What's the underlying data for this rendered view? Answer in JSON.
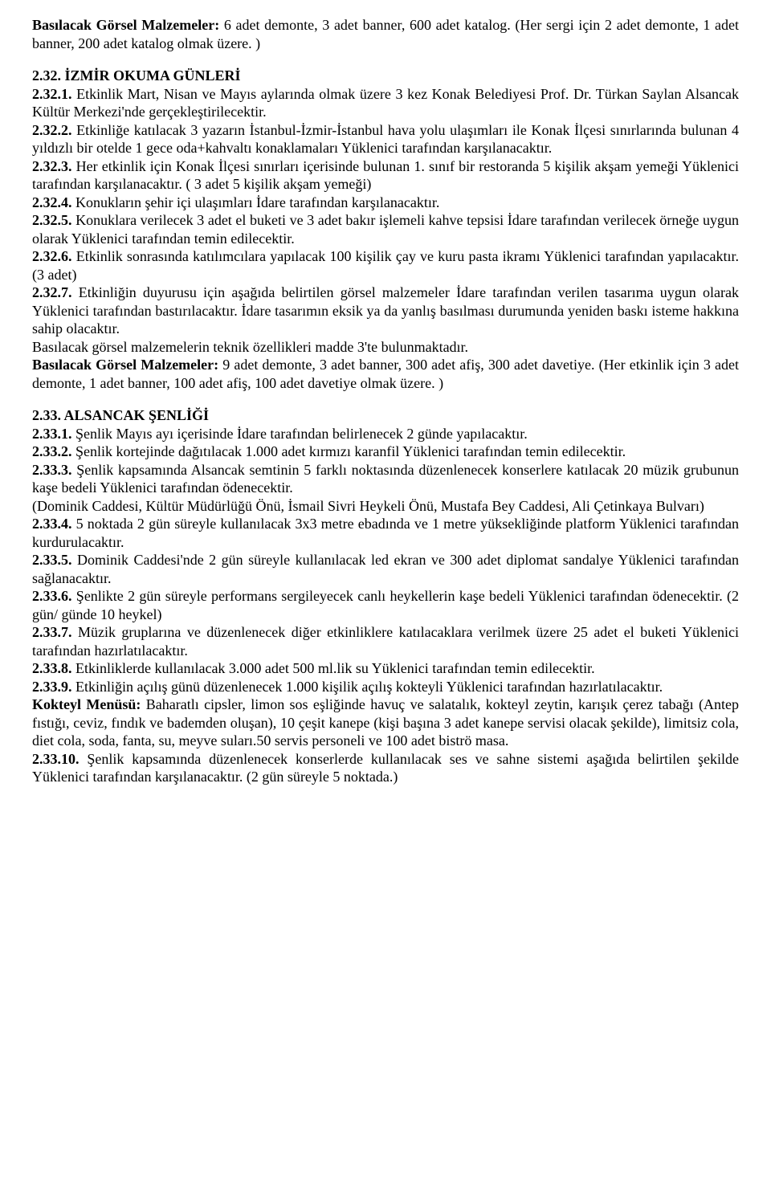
{
  "font": {
    "family": "Times New Roman",
    "size_pt": 12,
    "color": "#000000"
  },
  "background_color": "#ffffff",
  "p1a_bold": "Basılacak Görsel Malzemeler:",
  "p1a": " 6 adet demonte, 3 adet banner, 600 adet katalog. (Her sergi için 2 adet demonte, 1 adet banner, 200 adet katalog olmak üzere. )",
  "s232_title": "2.32. İZMİR OKUMA GÜNLERİ",
  "s232_1b": "2.32.1.",
  "s232_1": " Etkinlik Mart, Nisan ve Mayıs aylarında olmak üzere 3 kez Konak Belediyesi Prof. Dr. Türkan Saylan Alsancak  Kültür Merkezi'nde gerçekleştirilecektir.",
  "s232_2b": "2.32.2.",
  "s232_2": " Etkinliğe katılacak 3 yazarın İstanbul-İzmir-İstanbul hava yolu ulaşımları ile Konak İlçesi sınırlarında bulunan 4 yıldızlı bir otelde 1 gece oda+kahvaltı konaklamaları Yüklenici tarafından karşılanacaktır.",
  "s232_3b": "2.32.3.",
  "s232_3": " Her etkinlik için Konak İlçesi sınırları içerisinde bulunan 1. sınıf bir restoranda 5 kişilik akşam yemeği Yüklenici tarafından karşılanacaktır. ( 3 adet 5 kişilik akşam yemeği)",
  "s232_4b": "2.32.4.",
  "s232_4": " Konukların şehir içi ulaşımları İdare tarafından karşılanacaktır.",
  "s232_5b": "2.32.5.",
  "s232_5": " Konuklara verilecek 3 adet el buketi ve 3 adet bakır işlemeli  kahve tepsisi İdare tarafından verilecek örneğe uygun olarak Yüklenici tarafından temin edilecektir.",
  "s232_6b": "2.32.6.",
  "s232_6": " Etkinlik sonrasında katılımcılara yapılacak 100 kişilik çay ve kuru pasta ikramı Yüklenici tarafından yapılacaktır. (3 adet)",
  "s232_7b": "2.32.7.",
  "s232_7": " Etkinliğin duyurusu için aşağıda belirtilen görsel malzemeler İdare tarafından verilen tasarıma uygun olarak Yüklenici tarafından bastırılacaktır. İdare tasarımın eksik ya da yanlış basılması durumunda yeniden baskı isteme hakkına sahip olacaktır.",
  "s232_7a": "Basılacak görsel malzemelerin teknik özellikleri madde 3'te bulunmaktadır.",
  "s232_gm_bold": "Basılacak Görsel Malzemeler:",
  "s232_gm": " 9 adet demonte, 3 adet banner, 300 adet afiş, 300 adet davetiye. (Her etkinlik için 3 adet demonte, 1 adet banner, 100 adet afiş, 100 adet davetiye olmak üzere. )",
  "s233_title": "2.33. ALSANCAK ŞENLİĞİ",
  "s233_1b": "2.33.1.",
  "s233_1": " Şenlik Mayıs ayı içerisinde İdare tarafından belirlenecek 2 günde yapılacaktır.",
  "s233_2b": "2.33.2.",
  "s233_2": " Şenlik kortejinde dağıtılacak 1.000 adet kırmızı karanfil Yüklenici tarafından temin edilecektir.",
  "s233_3b": "2.33.3.",
  "s233_3": " Şenlik kapsamında Alsancak semtinin 5 farklı noktasında düzenlenecek konserlere katılacak 20 müzik grubunun kaşe bedeli Yüklenici tarafından ödenecektir.",
  "s233_3a": "(Dominik  Caddesi, Kültür Müdürlüğü Önü, İsmail Sivri Heykeli Önü, Mustafa Bey Caddesi, Ali Çetinkaya Bulvarı)",
  "s233_4b": "2.33.4.",
  "s233_4": " 5 noktada 2 gün süreyle kullanılacak 3x3 metre ebadında ve 1 metre yüksekliğinde platform Yüklenici tarafından kurdurulacaktır.",
  "s233_5b": "2.33.5.",
  "s233_5": " Dominik Caddesi'nde 2 gün süreyle kullanılacak led ekran ve 300 adet diplomat sandalye Yüklenici tarafından sağlanacaktır.",
  "s233_6b": "2.33.6.",
  "s233_6": " Şenlikte 2 gün süreyle performans sergileyecek canlı heykellerin kaşe bedeli Yüklenici tarafından ödenecektir. (2 gün/ günde 10 heykel)",
  "s233_7b": "2.33.7.",
  "s233_7": " Müzik gruplarına ve düzenlenecek diğer etkinliklere katılacaklara verilmek üzere 25 adet el buketi Yüklenici tarafından hazırlatılacaktır.",
  "s233_8b": "2.33.8.",
  "s233_8": " Etkinliklerde kullanılacak 3.000 adet 500 ml.lik su Yüklenici tarafından temin edilecektir.",
  "s233_9b": "2.33.9.",
  "s233_9": " Etkinliğin açılış günü düzenlenecek 1.000 kişilik açılış kokteyli Yüklenici tarafından hazırlatılacaktır.",
  "s233_kokteyl_bold": "Kokteyl Menüsü:",
  "s233_kokteyl": " Baharatlı cipsler, limon sos eşliğinde havuç ve salatalık, kokteyl zeytin, karışık çerez tabağı (Antep fıstığı, ceviz, fındık ve bademden oluşan), 10 çeşit kanepe (kişi başına 3 adet kanepe servisi olacak şekilde), limitsiz  cola, diet cola, soda, fanta, su, meyve suları.50 servis personeli ve 100 adet biströ masa.",
  "s233_10b": "2.33.10.",
  "s233_10": " Şenlik kapsamında düzenlenecek konserlerde  kullanılacak ses ve sahne sistemi aşağıda belirtilen şekilde Yüklenici tarafından karşılanacaktır. (2 gün süreyle 5 noktada.)"
}
